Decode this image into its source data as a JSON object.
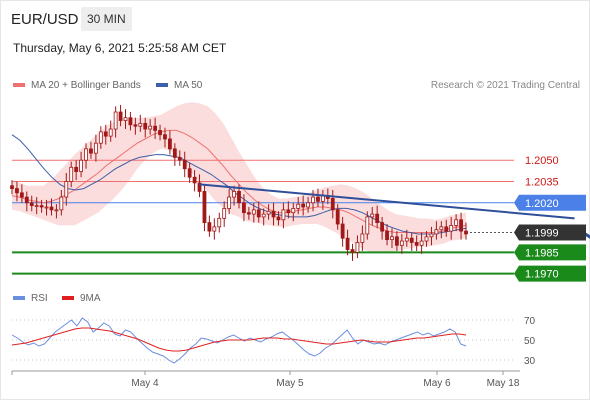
{
  "header": {
    "symbol": "EUR/USD",
    "timeframe": "30 MIN",
    "datetime": "Thursday, May 6, 2021 5:25:58 AM CET"
  },
  "legend": {
    "ma20_label": "MA 20 + Bollinger Bands",
    "ma50_label": "MA 50",
    "credit": "Research © 2021 Trading Central",
    "rsi_label": "RSI",
    "rsi_ma_label": "9MA"
  },
  "colors": {
    "ma20": "#f07070",
    "band_fill": "#fad2d2",
    "ma50": "#3d5ea8",
    "candle": "#a01818",
    "resistance": "#f07070",
    "pivot": "#4a80e8",
    "support": "#1a8a1a",
    "trendline": "#2f4f9a",
    "current": "#333333",
    "rsi": "#6a8ee0",
    "rsi_ma": "#e02020"
  },
  "chart_data": {
    "type": "candlestick",
    "instrument": "EUR/USD",
    "interval": "30 MIN",
    "y_range": [
      1.1962,
      1.2096
    ],
    "x_ticks": [
      "May 4",
      "May 5",
      "May 6",
      "May 18"
    ],
    "levels": [
      {
        "value": 1.205,
        "label": "1.2050",
        "type": "resistance"
      },
      {
        "value": 1.2035,
        "label": "1.2035",
        "type": "resistance"
      },
      {
        "value": 1.202,
        "label": "1.2020",
        "type": "pivot"
      },
      {
        "value": 1.1999,
        "label": "1.1999",
        "type": "current"
      },
      {
        "value": 1.1985,
        "label": "1.1985",
        "type": "support"
      },
      {
        "value": 1.197,
        "label": "1.1970",
        "type": "support"
      }
    ],
    "trendline": {
      "from": [
        38,
        1.2033
      ],
      "to": [
        114,
        1.2009
      ]
    },
    "forecast_arrow": {
      "from": [
        114,
        1.2003
      ],
      "to": [
        127,
        1.1973
      ]
    },
    "close": [
      1.203,
      1.2027,
      1.2024,
      1.202,
      1.2018,
      1.2018,
      1.2017,
      1.2017,
      1.2015,
      1.2015,
      1.2024,
      1.2035,
      1.2045,
      1.2042,
      1.205,
      1.2058,
      1.2055,
      1.2062,
      1.207,
      1.2067,
      1.2072,
      1.2084,
      1.2078,
      1.208,
      1.2075,
      1.2074,
      1.2076,
      1.2072,
      1.2074,
      1.2071,
      1.2068,
      1.2065,
      1.2058,
      1.2052,
      1.205,
      1.2044,
      1.2038,
      1.2034,
      1.2028,
      1.2006,
      1.2,
      1.2003,
      1.2009,
      1.2016,
      1.2024,
      1.2028,
      1.202,
      1.2013,
      1.2012,
      1.2015,
      1.201,
      1.2012,
      1.2014,
      1.201,
      1.2008,
      1.2015,
      1.2013,
      1.2016,
      1.2019,
      1.2017,
      1.202,
      1.2024,
      1.2021,
      1.2025,
      1.2023,
      1.2015,
      1.2005,
      1.1995,
      1.1987,
      1.1985,
      1.1992,
      1.1998,
      1.201,
      1.2012,
      1.2006,
      1.2,
      1.1994,
      1.1996,
      1.199,
      1.1993,
      1.1995,
      1.1992,
      1.199,
      1.1993,
      1.1996,
      1.1998,
      1.2001,
      1.2003,
      1.2,
      1.2004,
      1.2008,
      1.2,
      1.1998
    ],
    "ma20": [
      1.2025,
      1.2024,
      1.2022,
      1.2021,
      1.202,
      1.2021,
      1.2023,
      1.2026,
      1.2029,
      1.2033,
      1.2037,
      1.2041,
      1.2046,
      1.205,
      1.2054,
      1.2058,
      1.2062,
      1.2065,
      1.2068,
      1.207,
      1.2071,
      1.2071,
      1.2069,
      1.2066,
      1.2062,
      1.2058,
      1.2052,
      1.2046,
      1.2039,
      1.2033,
      1.2027,
      1.2022,
      1.2018,
      1.2015,
      1.2013,
      1.2013,
      1.2014,
      1.2015,
      1.2016,
      1.2017,
      1.2017,
      1.2016,
      1.2015,
      1.2013,
      1.201,
      1.2007,
      1.2004,
      1.2002,
      1.2,
      1.1999,
      1.1999,
      1.1999,
      1.1999,
      1.1999,
      1.1999,
      1.2,
      1.2002,
      1.2003,
      1.2004
    ],
    "band_width": [
      0.001,
      0.001,
      0.001,
      0.0011,
      0.0012,
      0.0015,
      0.0019,
      0.0022,
      0.0025,
      0.0026,
      0.0027,
      0.0028,
      0.0028,
      0.0027,
      0.0025,
      0.0022,
      0.0018,
      0.0015,
      0.0013,
      0.0012,
      0.0014,
      0.0017,
      0.0021,
      0.0025,
      0.0028,
      0.003,
      0.0031,
      0.003,
      0.0027,
      0.0023,
      0.002,
      0.0016,
      0.0013,
      0.0011,
      0.001,
      0.001,
      0.001,
      0.001,
      0.0011,
      0.0012,
      0.0014,
      0.0016,
      0.0018,
      0.0019,
      0.002,
      0.002,
      0.0019,
      0.0017,
      0.0015,
      0.0013,
      0.0012,
      0.0011,
      0.001,
      0.001,
      0.0009,
      0.0009,
      0.0009,
      0.0009,
      0.0009
    ],
    "ma50": [
      1.2068,
      1.2064,
      1.2058,
      1.2051,
      1.2044,
      1.2038,
      1.2033,
      1.203,
      1.2029,
      1.203,
      1.2033,
      1.2036,
      1.204,
      1.2044,
      1.2047,
      1.205,
      1.2052,
      1.2053,
      1.2054,
      1.2054,
      1.2053,
      1.2052,
      1.2049,
      1.2046,
      1.2043,
      1.204,
      1.2036,
      1.2032,
      1.2027,
      1.2023,
      1.2019,
      1.2016,
      1.2014,
      1.2012,
      1.2011,
      1.201,
      1.201,
      1.201,
      1.2011,
      1.2013,
      1.2015,
      1.2016,
      1.2016,
      1.2015,
      1.2013,
      1.201,
      1.2007,
      1.2004,
      1.2002,
      1.2,
      1.1999,
      1.1998,
      1.1998,
      1.1998,
      1.1999,
      1.2,
      1.2001,
      1.2002
    ],
    "rsi_axis": {
      "ticks": [
        30,
        50,
        70
      ],
      "range": [
        22,
        77
      ]
    },
    "rsi": [
      55,
      52,
      48,
      45,
      47,
      44,
      46,
      52,
      58,
      62,
      66,
      70,
      64,
      72,
      68,
      58,
      62,
      67,
      64,
      56,
      54,
      60,
      58,
      52,
      47,
      42,
      38,
      36,
      34,
      30,
      27,
      31,
      36,
      42,
      46,
      52,
      51,
      49,
      47,
      50,
      53,
      55,
      52,
      49,
      52,
      50,
      48,
      51,
      53,
      56,
      58,
      54,
      50,
      45,
      40,
      36,
      34,
      37,
      42,
      45,
      50,
      55,
      60,
      52,
      46,
      50,
      48,
      46,
      47,
      45,
      48,
      50,
      52,
      54,
      56,
      58,
      55,
      57,
      54,
      56,
      58,
      61,
      58,
      46,
      44
    ],
    "rsi_ma": [
      45,
      46,
      47,
      49,
      51,
      53,
      55,
      57,
      59,
      61,
      62,
      62,
      61,
      60,
      59,
      57,
      55,
      53,
      51,
      48,
      45,
      42,
      40,
      39,
      39,
      40,
      42,
      44,
      46,
      48,
      49,
      50,
      50,
      50,
      50,
      51,
      52,
      52,
      52,
      51,
      51,
      50,
      49,
      48,
      47,
      46,
      46,
      47,
      48,
      49,
      50,
      49,
      48,
      48,
      48,
      49,
      50,
      51,
      52,
      52,
      53,
      54,
      55,
      56,
      56,
      55
    ]
  }
}
